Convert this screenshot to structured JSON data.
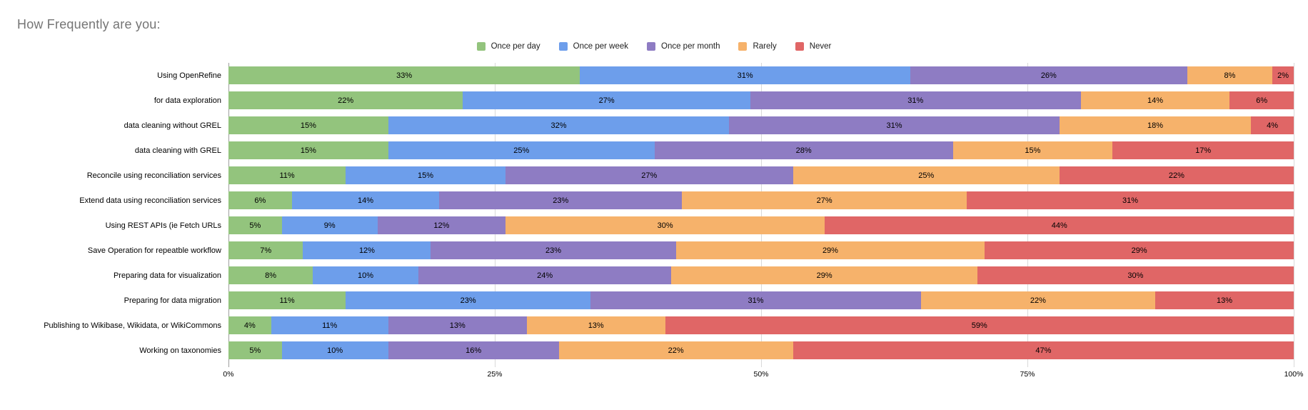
{
  "title": "How Frequently are you:",
  "legend": [
    {
      "label": "Once per day",
      "color": "#93c47d"
    },
    {
      "label": "Once per week",
      "color": "#6d9eeb"
    },
    {
      "label": "Once per month",
      "color": "#8e7cc3"
    },
    {
      "label": "Rarely",
      "color": "#f6b26b"
    },
    {
      "label": "Never",
      "color": "#e06666"
    }
  ],
  "chart_data": {
    "type": "bar",
    "orientation": "horizontal",
    "stacked": true,
    "unit": "%",
    "title": "How Frequently are you:",
    "categories": [
      "Using OpenRefine",
      "for data exploration",
      "data cleaning without GREL",
      "data cleaning with GREL",
      "Reconcile using reconciliation services",
      "Extend data using reconciliation services",
      "Using REST APIs (ie Fetch URLs",
      "Save Operation for repeatble workflow",
      "Preparing data for visualization",
      "Preparing for data migration",
      "Publishing to Wikibase, Wikidata, or WikiCommons",
      "Working on taxonomies"
    ],
    "series": [
      {
        "name": "Once per day",
        "color": "#93c47d",
        "values": [
          33,
          22,
          15,
          15,
          11,
          6,
          5,
          7,
          8,
          11,
          4,
          5
        ]
      },
      {
        "name": "Once per week",
        "color": "#6d9eeb",
        "values": [
          31,
          27,
          32,
          25,
          15,
          14,
          9,
          12,
          10,
          23,
          11,
          10
        ]
      },
      {
        "name": "Once per month",
        "color": "#8e7cc3",
        "values": [
          26,
          31,
          31,
          28,
          27,
          23,
          12,
          23,
          24,
          31,
          13,
          16
        ]
      },
      {
        "name": "Rarely",
        "color": "#f6b26b",
        "values": [
          8,
          14,
          18,
          15,
          25,
          27,
          30,
          29,
          29,
          22,
          13,
          22
        ]
      },
      {
        "name": "Never",
        "color": "#e06666",
        "values": [
          2,
          6,
          4,
          17,
          22,
          31,
          44,
          29,
          30,
          13,
          59,
          47
        ]
      }
    ],
    "xlim": [
      0,
      100
    ],
    "x_ticks": [
      "0%",
      "25%",
      "50%",
      "75%",
      "100%"
    ],
    "grid": true,
    "legend_position": "top-center"
  }
}
